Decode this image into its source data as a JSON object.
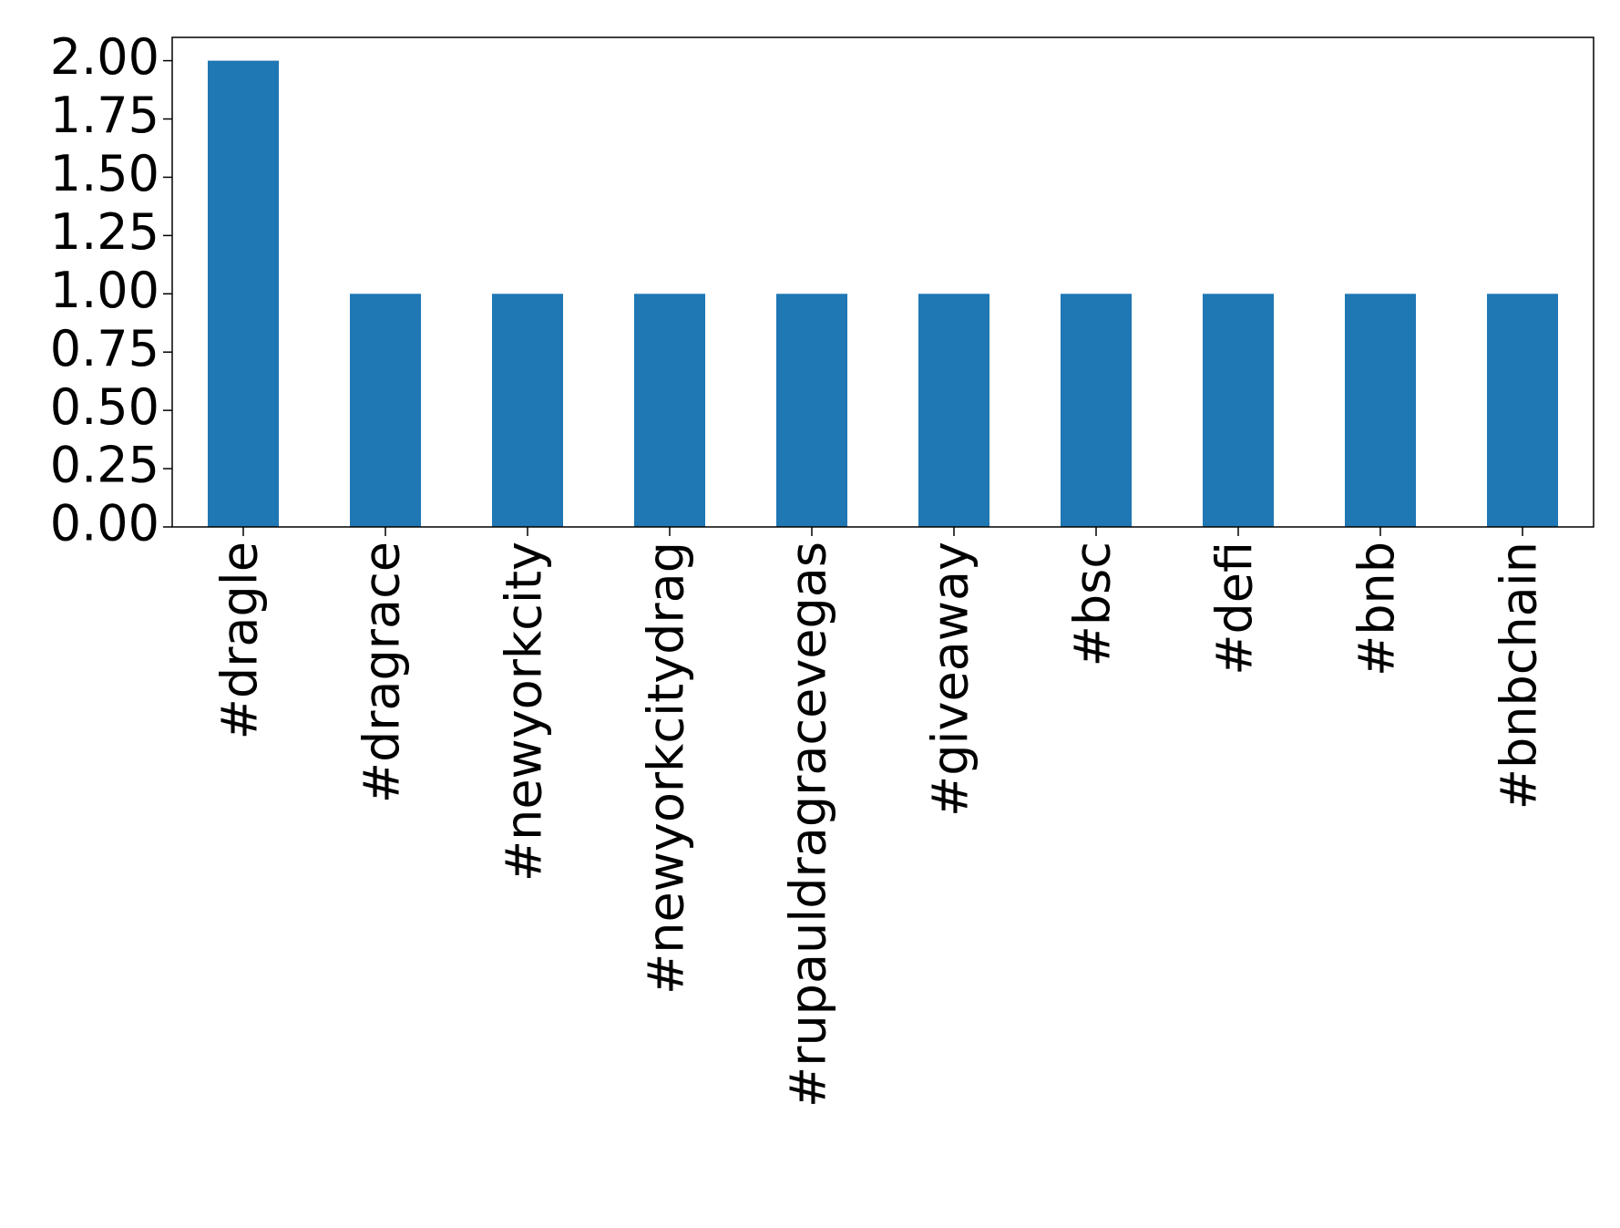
{
  "chart_data": {
    "type": "bar",
    "categories": [
      "#dragle",
      "#dragrace",
      "#newyorkcity",
      "#newyorkcitydrag",
      "#rupauldragracevegas",
      "#giveaway",
      "#bsc",
      "#defi",
      "#bnb",
      "#bnbchain"
    ],
    "values": [
      2,
      1,
      1,
      1,
      1,
      1,
      1,
      1,
      1,
      1
    ],
    "color": "#1f77b4",
    "ylim": [
      0,
      2.1
    ],
    "yticks": [
      {
        "value": 0,
        "label": "0.00"
      },
      {
        "value": 0.25,
        "label": "0.25"
      },
      {
        "value": 0.5,
        "label": "0.50"
      },
      {
        "value": 0.75,
        "label": "0.75"
      },
      {
        "value": 1,
        "label": "1.00"
      },
      {
        "value": 1.25,
        "label": "1.25"
      },
      {
        "value": 1.5,
        "label": "1.50"
      },
      {
        "value": 1.75,
        "label": "1.75"
      },
      {
        "value": 2,
        "label": "2.00"
      }
    ],
    "grid": false
  }
}
